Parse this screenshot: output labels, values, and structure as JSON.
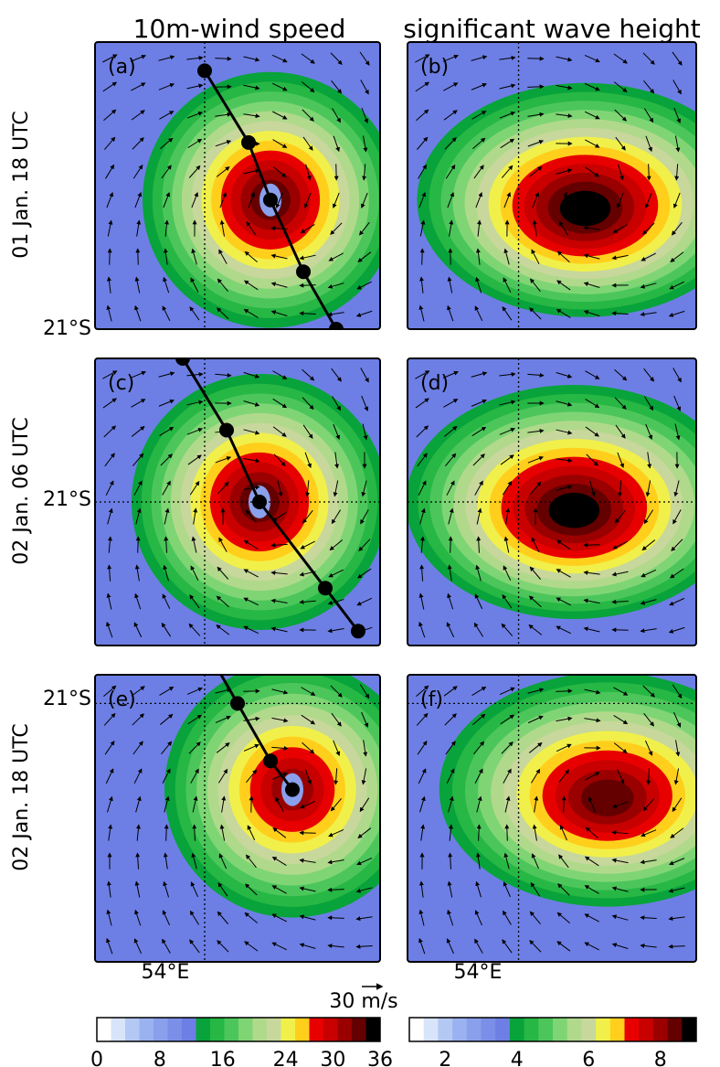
{
  "column_titles": [
    "10m-wind speed",
    "significant wave height"
  ],
  "row_labels": [
    "01 Jan. 18 UTC",
    "02 Jan. 06 UTC",
    "02 Jan. 18 UTC"
  ],
  "reference_arrow_label": "30 m/s",
  "colors": {
    "land_outline": "#000000",
    "grid_line": "#000000",
    "scale": [
      "#ffffff",
      "#d8e4fa",
      "#b4c8f4",
      "#9bb2f0",
      "#8aa0ec",
      "#7b8ee8",
      "#6d7fe4",
      "#08a33a",
      "#27b744",
      "#4cc65b",
      "#7fd574",
      "#b1d98c",
      "#c8d79b",
      "#f1f04a",
      "#ffcf1c",
      "#e80000",
      "#c80000",
      "#9a0000",
      "#640000",
      "#000000"
    ]
  },
  "chart_data": [
    {
      "panel": "(a)",
      "type": "heatmap",
      "variable": "10m-wind speed",
      "time": "01 Jan. 18 UTC",
      "units": "m/s",
      "peak_value": 34,
      "center_lon": 54.3,
      "center_lat": -20.1,
      "y_tick_label": "21°S",
      "x_tick_label": "",
      "track": [
        [
          54.0,
          -19.2
        ],
        [
          54.2,
          -19.7
        ],
        [
          54.3,
          -20.1
        ],
        [
          54.45,
          -20.6
        ],
        [
          54.6,
          -21.0
        ]
      ]
    },
    {
      "panel": "(b)",
      "type": "heatmap",
      "variable": "significant wave height",
      "time": "01 Jan. 18 UTC",
      "units": "m",
      "peak_value": 8.8,
      "center_lon": 54.3,
      "center_lat": -20.1,
      "y_tick_label": "",
      "x_tick_label": ""
    },
    {
      "panel": "(c)",
      "type": "heatmap",
      "variable": "10m-wind speed",
      "time": "02 Jan. 06 UTC",
      "units": "m/s",
      "peak_value": 34,
      "center_lon": 54.25,
      "center_lat": -21.0,
      "y_tick_label": "21°S",
      "x_tick_label": "",
      "track": [
        [
          53.9,
          -20.0
        ],
        [
          54.1,
          -20.5
        ],
        [
          54.25,
          -21.0
        ],
        [
          54.55,
          -21.6
        ],
        [
          54.7,
          -21.9
        ]
      ]
    },
    {
      "panel": "(d)",
      "type": "heatmap",
      "variable": "significant wave height",
      "time": "02 Jan. 06 UTC",
      "units": "m",
      "peak_value": 8.8,
      "center_lon": 54.25,
      "center_lat": -21.0,
      "y_tick_label": "",
      "x_tick_label": ""
    },
    {
      "panel": "(e)",
      "type": "heatmap",
      "variable": "10m-wind speed",
      "time": "02 Jan. 18 UTC",
      "units": "m/s",
      "peak_value": 30,
      "center_lon": 54.4,
      "center_lat": -21.6,
      "y_tick_label": "21°S",
      "x_tick_label": "54°E",
      "track": [
        [
          54.0,
          -20.6
        ],
        [
          54.15,
          -21.0
        ],
        [
          54.3,
          -21.4
        ],
        [
          54.4,
          -21.6
        ]
      ]
    },
    {
      "panel": "(f)",
      "type": "heatmap",
      "variable": "significant wave height",
      "time": "02 Jan. 18 UTC",
      "units": "m",
      "peak_value": 8.0,
      "center_lon": 54.4,
      "center_lat": -21.6,
      "y_tick_label": "",
      "x_tick_label": "54°E"
    },
    {
      "type": "colorbar",
      "variable": "10m-wind speed",
      "range": [
        0,
        36
      ],
      "tick_labels": [
        "0",
        "8",
        "16",
        "24",
        "30",
        "36"
      ]
    },
    {
      "type": "colorbar",
      "variable": "significant wave height",
      "range": [
        1,
        9
      ],
      "tick_labels": [
        "2",
        "4",
        "6",
        "8"
      ]
    }
  ]
}
